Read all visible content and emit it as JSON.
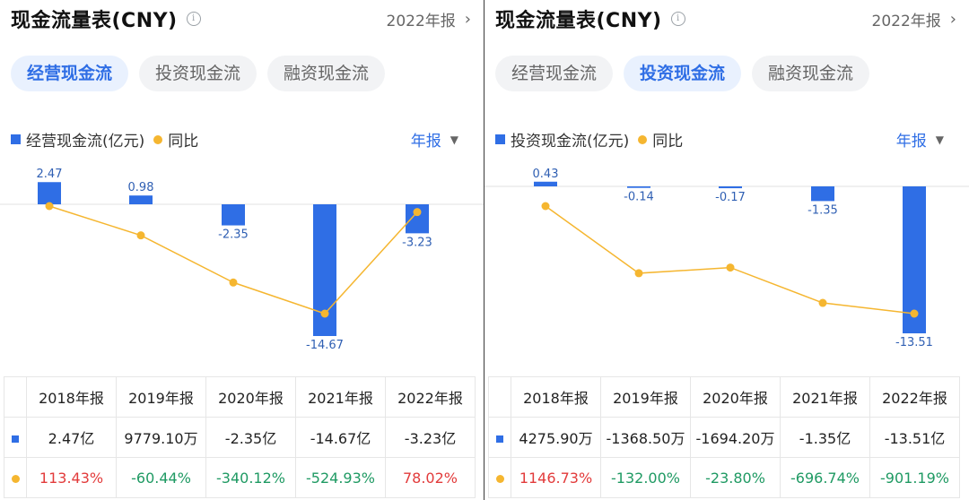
{
  "panels": [
    {
      "title": "现金流量表(CNY)",
      "period": "2022年报",
      "tabs": [
        "经营现金流",
        "投资现金流",
        "融资现金流"
      ],
      "active_tab": 0,
      "legend_bar": "经营现金流(亿元)",
      "legend_line": "同比",
      "annual_label": "年报",
      "table": {
        "headers": [
          "2018年报",
          "2019年报",
          "2020年报",
          "2021年报",
          "2022年报"
        ],
        "values": [
          "2.47亿",
          "9779.10万",
          "-2.35亿",
          "-14.67亿",
          "-3.23亿"
        ],
        "yoy": [
          "113.43%",
          "-60.44%",
          "-340.12%",
          "-524.93%",
          "78.02%"
        ]
      }
    },
    {
      "title": "现金流量表(CNY)",
      "period": "2022年报",
      "tabs": [
        "经营现金流",
        "投资现金流",
        "融资现金流"
      ],
      "active_tab": 1,
      "legend_bar": "投资现金流(亿元)",
      "legend_line": "同比",
      "annual_label": "年报",
      "table": {
        "headers": [
          "2018年报",
          "2019年报",
          "2020年报",
          "2021年报",
          "2022年报"
        ],
        "values": [
          "4275.90万",
          "-1368.50万",
          "-1694.20万",
          "-1.35亿",
          "-13.51亿"
        ],
        "yoy": [
          "1146.73%",
          "-132.00%",
          "-23.80%",
          "-696.74%",
          "-901.19%"
        ]
      }
    }
  ],
  "colors": {
    "bar": "#2f6ee5",
    "line": "#f5b630",
    "positive": "#e23b3b",
    "negative": "#1f9a63"
  },
  "chart_data": [
    {
      "type": "bar",
      "categories": [
        "2018年报",
        "2019年报",
        "2020年报",
        "2021年报",
        "2022年报"
      ],
      "series": [
        {
          "name": "经营现金流(亿元)",
          "values": [
            2.47,
            0.98,
            -2.35,
            -14.67,
            -3.23
          ]
        },
        {
          "name": "同比",
          "type": "line",
          "values": [
            113.43,
            -60.44,
            -340.12,
            -524.93,
            78.02
          ]
        }
      ],
      "bar_labels": [
        "2.47",
        "0.98",
        "-2.35",
        "-14.67",
        "-3.23"
      ]
    },
    {
      "type": "bar",
      "categories": [
        "2018年报",
        "2019年报",
        "2020年报",
        "2021年报",
        "2022年报"
      ],
      "series": [
        {
          "name": "投资现金流(亿元)",
          "values": [
            0.43,
            -0.14,
            -0.17,
            -1.35,
            -13.51
          ]
        },
        {
          "name": "同比",
          "type": "line",
          "values": [
            1146.73,
            -132.0,
            -23.8,
            -696.74,
            -901.19
          ]
        }
      ],
      "bar_labels": [
        "0.43",
        "-0.14",
        "-0.17",
        "-1.35",
        "-13.51"
      ]
    }
  ]
}
